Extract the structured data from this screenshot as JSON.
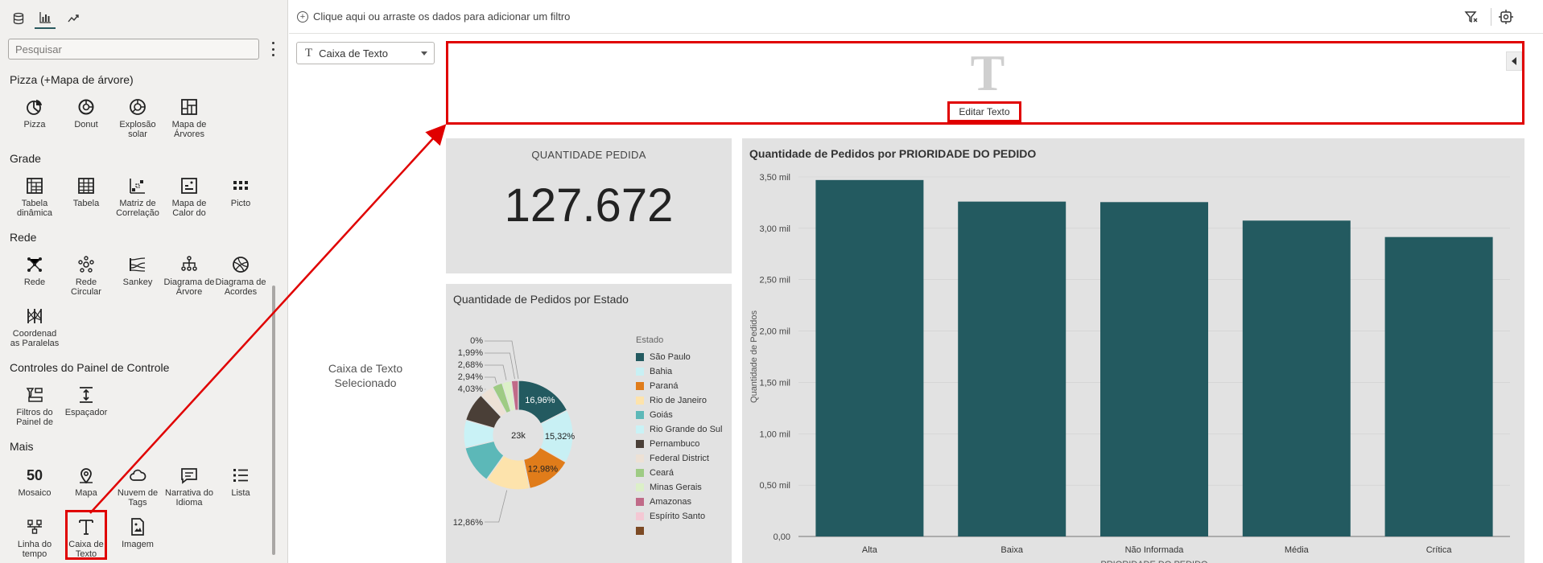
{
  "left_panel": {
    "tabs": [
      {
        "name": "data-tab",
        "icon": "database-icon"
      },
      {
        "name": "visualizations-tab",
        "icon": "bar-chart-icon"
      },
      {
        "name": "analytics-tab",
        "icon": "trend-icon"
      }
    ],
    "search_placeholder": "Pesquisar",
    "groups": [
      {
        "title": "Pizza (+Mapa de árvore)",
        "items": [
          {
            "label": "Pizza",
            "icon": "pie-icon"
          },
          {
            "label": "Donut",
            "icon": "donut-icon"
          },
          {
            "label": "Explosão solar",
            "icon": "sunburst-icon"
          },
          {
            "label": "Mapa de Árvores",
            "icon": "treemap-icon"
          }
        ]
      },
      {
        "title": "Grade",
        "items": [
          {
            "label": "Tabela dinâmica",
            "icon": "pivot-table-icon"
          },
          {
            "label": "Tabela",
            "icon": "table-icon"
          },
          {
            "label": "Matriz de Correlação",
            "icon": "correlation-matrix-icon"
          },
          {
            "label": "Mapa de Calor do",
            "icon": "heatmap-icon"
          },
          {
            "label": "Picto",
            "icon": "pictogram-icon"
          }
        ]
      },
      {
        "title": "Rede",
        "items": [
          {
            "label": "Rede",
            "icon": "network-icon"
          },
          {
            "label": "Rede Circular",
            "icon": "circular-network-icon"
          },
          {
            "label": "Sankey",
            "icon": "sankey-icon"
          },
          {
            "label": "Diagrama de Árvore",
            "icon": "tree-diagram-icon"
          },
          {
            "label": "Diagrama de Acordes",
            "icon": "chord-diagram-icon"
          },
          {
            "label": "Coordenad as Paralelas",
            "icon": "parallel-coordinates-icon"
          }
        ]
      },
      {
        "title": "Controles do Painel de Controle",
        "items": [
          {
            "label": "Filtros do Painel de",
            "icon": "dashboard-filters-icon"
          },
          {
            "label": "Espaçador",
            "icon": "spacer-icon"
          }
        ]
      },
      {
        "title": "Mais",
        "items": [
          {
            "label": "Mosaico",
            "icon": "tile-icon",
            "glyph": "50"
          },
          {
            "label": "Mapa",
            "icon": "map-pin-icon"
          },
          {
            "label": "Nuvem de Tags",
            "icon": "tag-cloud-icon"
          },
          {
            "label": "Narrativa do Idioma",
            "icon": "language-narrative-icon"
          },
          {
            "label": "Lista",
            "icon": "list-icon"
          },
          {
            "label": "Linha do tempo",
            "icon": "timeline-icon"
          },
          {
            "label": "Caixa de Texto",
            "icon": "text-box-icon"
          },
          {
            "label": "Imagem",
            "icon": "image-icon"
          }
        ]
      }
    ]
  },
  "filter_bar": {
    "placeholder": "Clique aqui ou arraste os dados para adicionar um filtro"
  },
  "canvas": {
    "viz_select": {
      "value": "Caixa de Texto"
    },
    "selected_note": "Caixa de Texto Selecionado",
    "text_box": {
      "glyph": "T",
      "edit_label": "Editar Texto"
    },
    "kpi": {
      "title": "QUANTIDADE PEDIDA",
      "value": "127.672"
    },
    "colors": {
      "accent_red": "#e00000",
      "bar": "#235a60",
      "card_bg": "#e2e2e2"
    }
  },
  "pie_chart": {
    "title": "Quantidade de Pedidos por Estado",
    "legend_title": "Estado",
    "center_label": "23k",
    "outside_labels": [
      "0%",
      "1,99%",
      "2,68%",
      "2,94%",
      "4,03%",
      "12,86%"
    ],
    "inside_labels": [
      "16,96%",
      "15,32%",
      "12,98%"
    ]
  },
  "chart_data": [
    {
      "type": "pie",
      "title": "Quantidade de Pedidos por Estado",
      "legend": "right",
      "categories": [
        "São Paulo",
        "Bahia",
        "Paraná",
        "Rio de Janeiro",
        "Goiás",
        "Rio Grande do Sul",
        "Pernambuco",
        "Federal District",
        "Ceará",
        "Minas Gerais",
        "Amazonas",
        "Espírito Santo",
        ""
      ],
      "values": [
        16.96,
        15.32,
        12.98,
        12.86,
        11.0,
        8.0,
        8.28,
        4.03,
        2.94,
        2.68,
        1.99,
        0.0,
        0.0
      ],
      "colors": [
        "#235a60",
        "#c8f0f4",
        "#e07c1a",
        "#fde3ac",
        "#5cb8b8",
        "#c9f2f6",
        "#4a3f37",
        "#ede1d5",
        "#9ecb84",
        "#dcf0c8",
        "#c06a88",
        "#f4c8d4",
        "#7c4a24"
      ]
    },
    {
      "type": "bar",
      "title": "Quantidade de Pedidos por PRIORIDADE DO PEDIDO",
      "xlabel": "PRIORIDADE DO PEDIDO",
      "ylabel": "Quantidade de Pedidos",
      "categories": [
        "Alta",
        "Baixa",
        "Não Informada",
        "Média",
        "Crítica"
      ],
      "values": [
        3470,
        3260,
        3255,
        3075,
        2915
      ],
      "ylim": [
        0,
        3500
      ],
      "yticks": [
        0,
        500,
        1000,
        1500,
        2000,
        2500,
        3000,
        3500
      ],
      "ytick_labels": [
        "0,00",
        "0,50 mil",
        "1,00 mil",
        "1,50 mil",
        "2,00 mil",
        "2,50 mil",
        "3,00 mil",
        "3,50 mil"
      ],
      "grid": true
    }
  ]
}
